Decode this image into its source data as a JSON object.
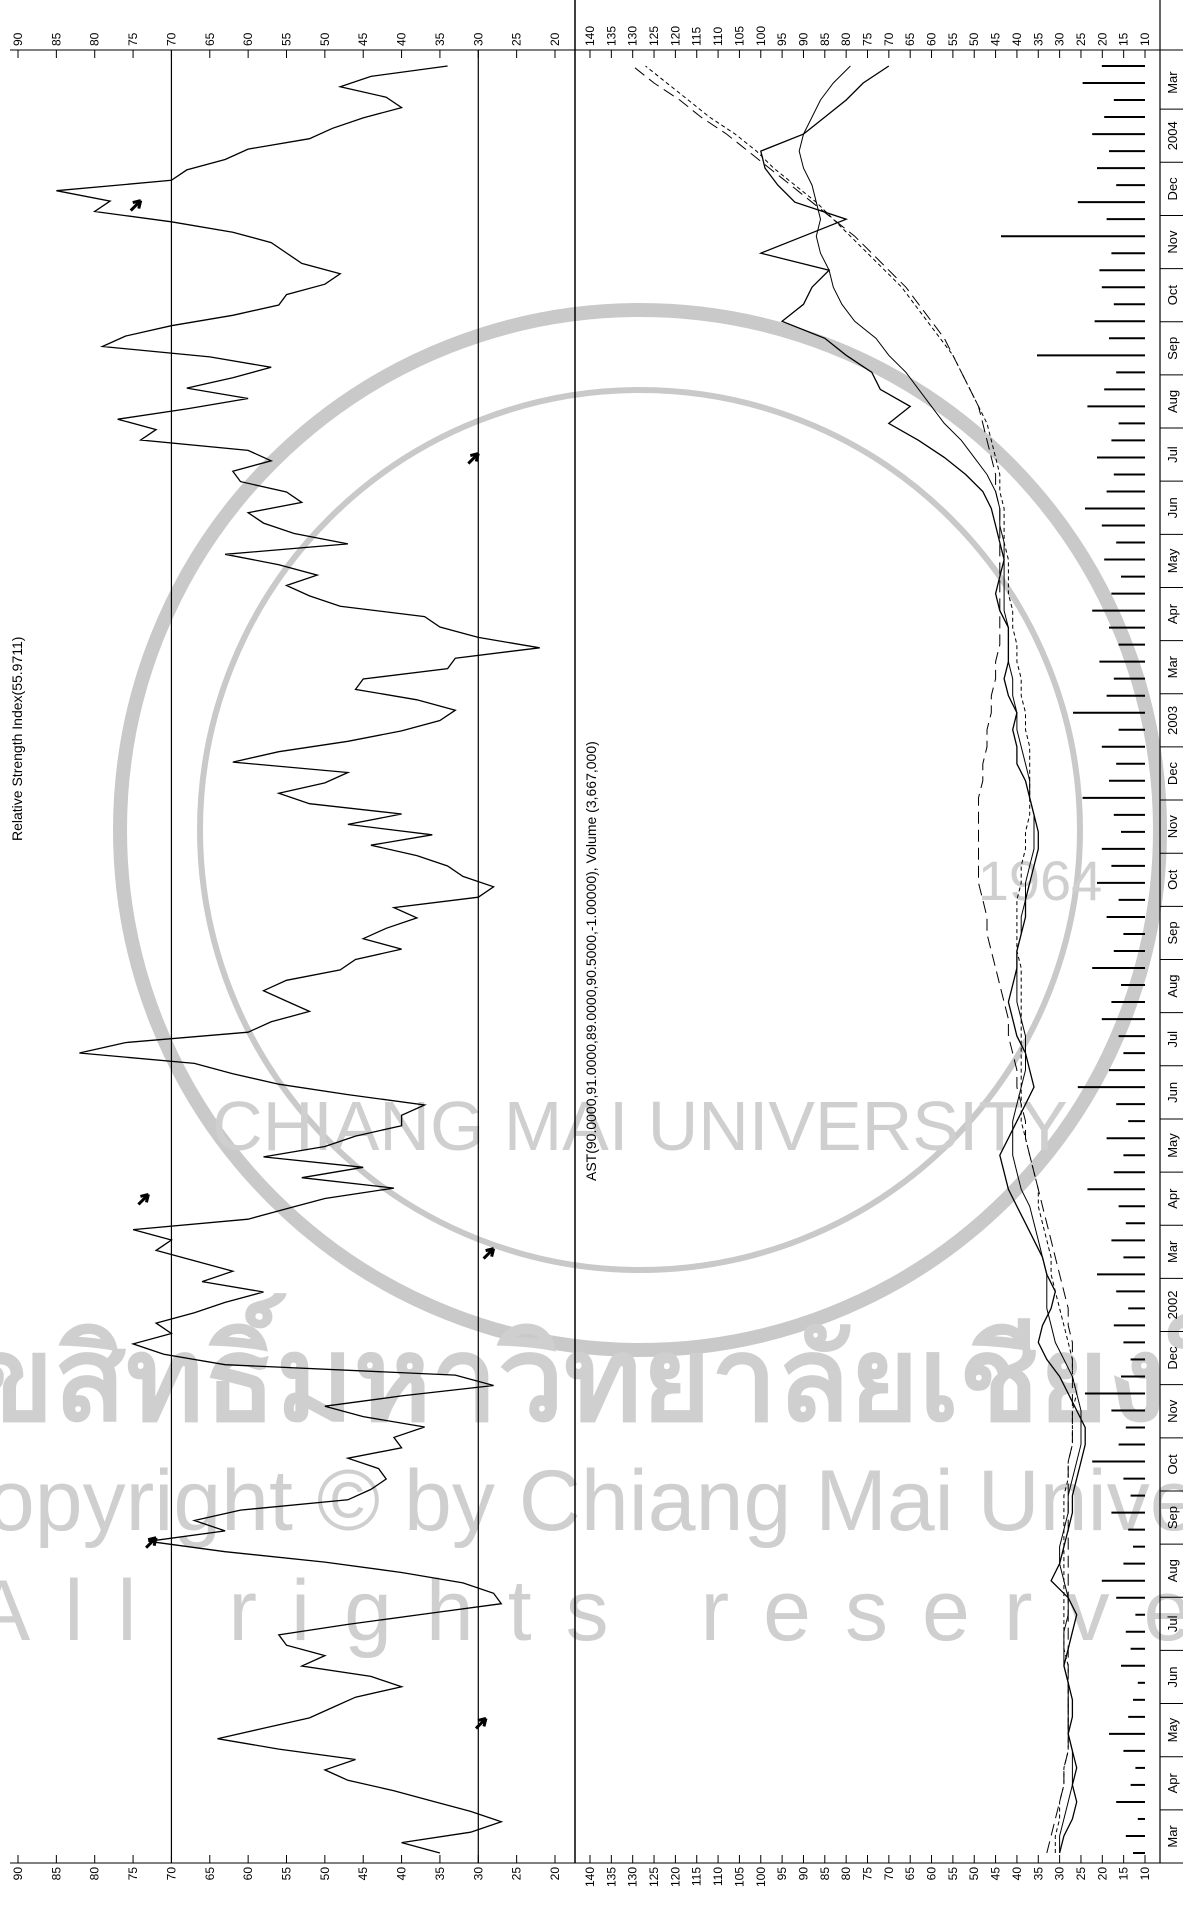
{
  "watermark": {
    "thai_text": "ลิขสิทธิ์มหาวิทยาลัยเชียงใหม่",
    "copyright": "Copyright © by Chiang Mai University",
    "rights": "All rights reserved",
    "seal_text": "CHIANG MAI UNIVERSITY",
    "seal_year": "1964"
  },
  "chart_data": [
    {
      "type": "line",
      "title": "Relative Strength Index(55.9711)",
      "ylim": [
        20,
        90
      ],
      "y_ticks": [
        90,
        85,
        80,
        75,
        70,
        65,
        60,
        55,
        50,
        45,
        40,
        35,
        30,
        25,
        20
      ],
      "reference_lines": [
        70,
        30
      ],
      "months": [
        "Mar",
        "Apr",
        "May",
        "Jun",
        "Jul",
        "Aug",
        "Sep",
        "Oct",
        "Nov",
        "Dec",
        "2002",
        "Mar",
        "Apr",
        "May",
        "Jun",
        "Jul",
        "Aug",
        "Sep",
        "Oct",
        "Nov",
        "Dec",
        "2003",
        "Mar",
        "Apr",
        "May",
        "Jun",
        "Jul",
        "Aug",
        "Sep",
        "Oct",
        "Nov",
        "Dec",
        "2004",
        "Mar"
      ],
      "series": [
        {
          "values": [
            35,
            40,
            31,
            27,
            31,
            36,
            41,
            47,
            50,
            46,
            56,
            64,
            58,
            52,
            49,
            46,
            40,
            44,
            53,
            50,
            55,
            56,
            47,
            37,
            27,
            28,
            32,
            40,
            50,
            63,
            73,
            63,
            67,
            61,
            47,
            44,
            42,
            43,
            47,
            40,
            41,
            37,
            45,
            50,
            40,
            28,
            33,
            63,
            71,
            75,
            70,
            72,
            67,
            63,
            58,
            66,
            62,
            67,
            72,
            70,
            75,
            60,
            55,
            50,
            41,
            53,
            45,
            58,
            50,
            46,
            40,
            40,
            37,
            47,
            56,
            62,
            67,
            82,
            76,
            60,
            57,
            52,
            55,
            58,
            55,
            48,
            46,
            40,
            45,
            42,
            38,
            41,
            30,
            28,
            32,
            34,
            38,
            44,
            36,
            47,
            40,
            52,
            56,
            50,
            47,
            62,
            56,
            47,
            40,
            35,
            33,
            38,
            46,
            45,
            34,
            33,
            22,
            30,
            35,
            37,
            48,
            52,
            55,
            51,
            56,
            63,
            47,
            54,
            58,
            60,
            53,
            55,
            61,
            62,
            57,
            60,
            74,
            72,
            77,
            68,
            60,
            68,
            62,
            57,
            65,
            79,
            76,
            70,
            62,
            56,
            55,
            50,
            48,
            53,
            55,
            57,
            62,
            70,
            80,
            78,
            85,
            70,
            68,
            63,
            60,
            52,
            49,
            45,
            40,
            42,
            48,
            44,
            34
          ]
        }
      ],
      "annotations": [
        {
          "y": 29
        },
        {
          "y": 72
        },
        {
          "y": 28
        },
        {
          "y": 73
        },
        {
          "y": 30
        },
        {
          "y": 74
        }
      ]
    },
    {
      "type": "line",
      "title": "AST(90.0000,91.0000,89.0000,90.5000,-1.00000), Volume (3,667,000)",
      "ylim": [
        10,
        140
      ],
      "y_ticks": [
        140,
        135,
        130,
        125,
        120,
        115,
        110,
        105,
        100,
        95,
        90,
        85,
        80,
        75,
        70,
        65,
        60,
        55,
        50,
        45,
        40,
        35,
        30,
        25,
        20,
        15,
        10
      ],
      "months": [
        "Mar",
        "Apr",
        "May",
        "Jun",
        "Jul",
        "Aug",
        "Sep",
        "Oct",
        "Nov",
        "Dec",
        "2002",
        "Mar",
        "Apr",
        "May",
        "Jun",
        "Jul",
        "Aug",
        "Sep",
        "Oct",
        "Nov",
        "Dec",
        "2003",
        "Mar",
        "Apr",
        "May",
        "Jun",
        "Jul",
        "Aug",
        "Sep",
        "Oct",
        "Nov",
        "Dec",
        "2004",
        "Mar"
      ],
      "series": [
        {
          "values": [
            30,
            29,
            27,
            26,
            27,
            26,
            27,
            28,
            27,
            27,
            28,
            29,
            28,
            27,
            26,
            28,
            32,
            30,
            29,
            28,
            27,
            27,
            26,
            25,
            24,
            24,
            26,
            28,
            30,
            33,
            35,
            34,
            32,
            31,
            33,
            34,
            36,
            38,
            40,
            42,
            43,
            44,
            42,
            40,
            38,
            36,
            37,
            38,
            40,
            41,
            42,
            41,
            40,
            40,
            39,
            38,
            38,
            37,
            36,
            35,
            35,
            36,
            37,
            38,
            40,
            40,
            41,
            40,
            42,
            43,
            42,
            42,
            42,
            44,
            45,
            44,
            43,
            44,
            45,
            46,
            48,
            52,
            57,
            63,
            70,
            65,
            72,
            74,
            80,
            85,
            95,
            90,
            88,
            84,
            100,
            90,
            80,
            92,
            96,
            99,
            100,
            90,
            85,
            80,
            76,
            70
          ]
        },
        {
          "values": [
            30,
            30,
            29,
            28,
            27,
            27,
            27,
            28,
            28,
            28,
            28,
            29,
            29,
            29,
            28,
            28,
            29,
            30,
            30,
            29,
            28,
            28,
            27,
            26,
            25,
            25,
            25,
            26,
            27,
            29,
            31,
            32,
            33,
            33,
            33,
            34,
            35,
            36,
            37,
            39,
            40,
            41,
            41,
            41,
            40,
            39,
            38,
            38,
            38,
            39,
            40,
            40,
            40,
            40,
            39,
            39,
            38,
            38,
            37,
            36,
            36,
            36,
            37,
            37,
            38,
            39,
            40,
            40,
            41,
            41,
            42,
            42,
            42,
            43,
            43,
            43,
            43,
            43,
            44,
            44,
            45,
            47,
            50,
            53,
            57,
            60,
            63,
            66,
            70,
            73,
            78,
            81,
            83,
            84,
            86,
            87,
            86,
            87,
            88,
            90,
            91,
            90,
            88,
            86,
            83,
            79
          ]
        },
        {
          "values": [
            31,
            31,
            30,
            30,
            29,
            29,
            28,
            28,
            28,
            28,
            28,
            28,
            29,
            29,
            29,
            29,
            29,
            29,
            29,
            29,
            29,
            29,
            28,
            28,
            27,
            27,
            27,
            26,
            27,
            27,
            28,
            29,
            30,
            31,
            32,
            32,
            33,
            34,
            35,
            35,
            36,
            37,
            38,
            39,
            39,
            39,
            39,
            39,
            39,
            39,
            39,
            39,
            39,
            40,
            40,
            40,
            40,
            39,
            39,
            38,
            38,
            37,
            37,
            37,
            37,
            37,
            38,
            38,
            39,
            39,
            40,
            40,
            41,
            41,
            42,
            42,
            42,
            43,
            43,
            43,
            44,
            44,
            45,
            46,
            47,
            49,
            51,
            53,
            55,
            58,
            61,
            64,
            67,
            71,
            75,
            79,
            83,
            87,
            92,
            97,
            101,
            106,
            112,
            117,
            122,
            127
          ]
        },
        {
          "values": [
            33,
            32,
            31,
            30,
            29,
            29,
            28,
            28,
            28,
            28,
            28,
            28,
            28,
            28,
            28,
            28,
            28,
            28,
            28,
            28,
            28,
            28,
            28,
            28,
            27,
            27,
            27,
            27,
            27,
            27,
            27,
            28,
            28,
            29,
            30,
            31,
            32,
            33,
            34,
            35,
            36,
            37,
            38,
            38,
            39,
            40,
            40,
            41,
            42,
            42,
            43,
            44,
            45,
            46,
            47,
            47,
            48,
            49,
            49,
            49,
            49,
            49,
            49,
            48,
            48,
            47,
            47,
            46,
            46,
            45,
            45,
            44,
            44,
            44,
            44,
            44,
            44,
            44,
            44,
            44,
            45,
            45,
            46,
            47,
            48,
            49,
            51,
            53,
            55,
            57,
            60,
            63,
            66,
            70,
            74,
            78,
            83,
            88,
            93,
            98,
            103,
            108,
            114,
            119,
            125,
            130
          ]
        }
      ],
      "volume": [
        5,
        8,
        3,
        12,
        6,
        4,
        9,
        15,
        7,
        5,
        3,
        10,
        6,
        8,
        4,
        12,
        18,
        9,
        5,
        7,
        14,
        6,
        9,
        22,
        11,
        8,
        14,
        25,
        10,
        6,
        9,
        13,
        7,
        12,
        20,
        9,
        14,
        8,
        11,
        24,
        13,
        9,
        16,
        7,
        12,
        28,
        15,
        9,
        11,
        18,
        14,
        10,
        22,
        13,
        9,
        16,
        11,
        20,
        14,
        18,
        10,
        13,
        26,
        15,
        12,
        18,
        11,
        30,
        16,
        13,
        19,
        11,
        15,
        22,
        14,
        10,
        17,
        12,
        18,
        25,
        16,
        13,
        20,
        14,
        11,
        24,
        17,
        12,
        45,
        15,
        21,
        13,
        18,
        19,
        14,
        60,
        16,
        28,
        12,
        20,
        15,
        22,
        17,
        13,
        26,
        18
      ]
    }
  ]
}
